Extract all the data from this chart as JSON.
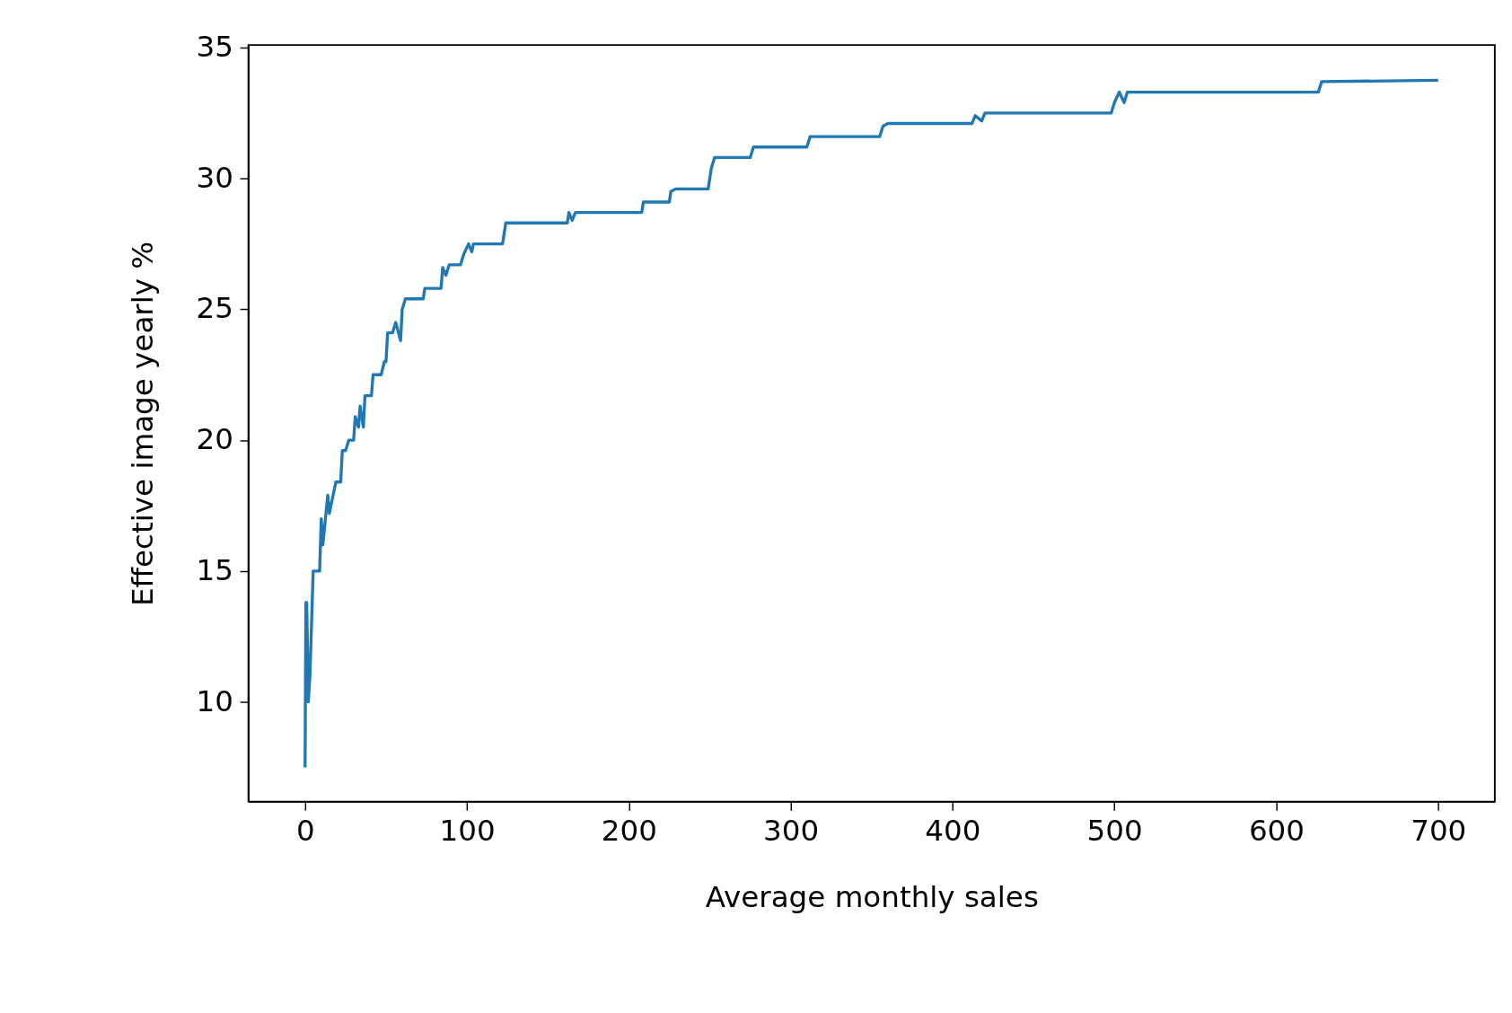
{
  "chart_data": {
    "type": "line",
    "xlabel": "Average monthly sales",
    "ylabel": "Effective image yearly %",
    "xlim": [
      -35,
      735
    ],
    "ylim": [
      6.19,
      35.1
    ],
    "xticks": [
      0,
      100,
      200,
      300,
      400,
      500,
      600,
      700
    ],
    "yticks": [
      10,
      15,
      20,
      25,
      30,
      35
    ],
    "grid": false,
    "marker": "none",
    "line_style": "solid",
    "series": [
      {
        "color": "#1f77b4",
        "x": [
          0,
          0.5,
          1,
          2,
          3,
          5,
          9,
          10,
          11,
          14,
          15,
          19,
          22,
          23,
          25,
          27,
          30,
          31,
          33,
          34,
          36,
          37,
          41,
          42,
          47,
          49,
          50,
          51,
          54,
          56,
          59,
          60,
          62,
          73,
          74,
          84,
          85,
          87,
          89,
          96,
          98,
          101,
          103,
          104,
          122,
          124,
          162,
          163,
          165,
          167,
          208,
          209,
          225,
          226,
          229,
          249,
          251,
          253,
          275,
          277,
          310,
          312,
          355,
          357,
          360,
          412,
          414,
          418,
          420,
          498,
          500,
          503,
          506,
          508,
          626,
          628,
          700
        ],
        "values": [
          7.5,
          13.8,
          13.8,
          10,
          11,
          15,
          15,
          17,
          16,
          17.9,
          17.2,
          18.4,
          18.4,
          19.6,
          19.6,
          20,
          20,
          20.9,
          20.5,
          21.3,
          20.5,
          21.7,
          21.7,
          22.5,
          22.5,
          23,
          23,
          24.1,
          24.1,
          24.5,
          23.8,
          25,
          25.4,
          25.4,
          25.8,
          25.8,
          26.6,
          26.3,
          26.7,
          26.7,
          27.1,
          27.5,
          27.2,
          27.5,
          27.5,
          28.3,
          28.3,
          28.7,
          28.4,
          28.7,
          28.7,
          29.1,
          29.1,
          29.5,
          29.6,
          29.6,
          30.4,
          30.8,
          30.8,
          31.2,
          31.2,
          31.6,
          31.6,
          32,
          32.1,
          32.1,
          32.4,
          32.2,
          32.5,
          32.5,
          32.9,
          33.3,
          32.9,
          33.3,
          33.3,
          33.7,
          33.75
        ]
      }
    ]
  }
}
